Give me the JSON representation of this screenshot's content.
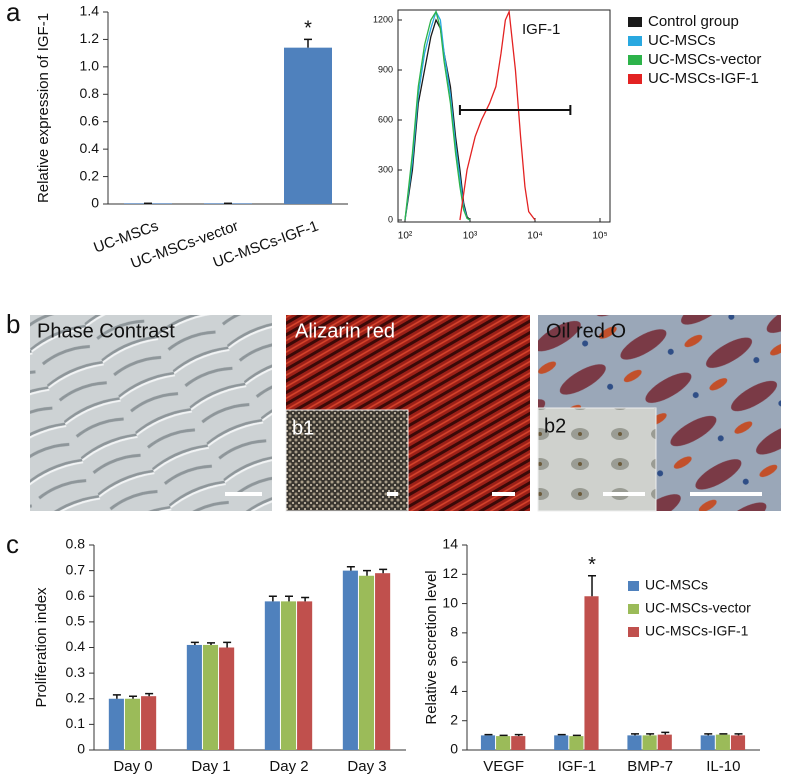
{
  "panel_labels": [
    "a",
    "b",
    "c"
  ],
  "images": [
    {
      "title": "Phase Contrast"
    },
    {
      "title": "Alizarin red",
      "inset": "b1"
    },
    {
      "title": "Oil red O",
      "inset": "b2"
    }
  ],
  "chart_data": [
    {
      "type": "bar",
      "ylabel": "Relative expression of IGF-1",
      "categories": [
        "UC-MSCs",
        "UC-MSCs-vector",
        "UC-MSCs-IGF-1"
      ],
      "values": [
        0.005,
        0.005,
        1.14
      ],
      "errors": [
        0,
        0,
        0.06
      ],
      "color": "#4f81bd",
      "annotation": "*",
      "xtick_rotation": -20,
      "ylim": [
        0,
        1.4
      ],
      "yticks": [
        0,
        0.2,
        0.4,
        0.6,
        0.8,
        {
          "value": 1,
          "label": "1.0"
        },
        1.2,
        1.4
      ]
    },
    {
      "type": "line",
      "annotation": "IGF-1",
      "xscale": "log",
      "legend": "right",
      "xlim": [
        100,
        100000
      ],
      "xticks": [
        {
          "value": 100,
          "label": "10²"
        },
        {
          "value": 1000,
          "label": "10³"
        },
        {
          "value": 10000,
          "label": "10⁴"
        },
        {
          "value": 100000,
          "label": "10⁵"
        }
      ],
      "ylim": [
        0,
        1260
      ],
      "yticks": [
        0,
        300,
        600,
        900,
        1200
      ],
      "gate": {
        "x": [
          700,
          35000
        ],
        "y": 660
      },
      "series": [
        {
          "name": "Control group",
          "color": "#1a1a1a",
          "x": [
            100,
            130,
            160,
            200,
            250,
            300,
            350,
            400,
            500,
            600,
            700,
            800,
            900,
            1000
          ],
          "values": [
            0,
            300,
            700,
            900,
            1100,
            1200,
            1150,
            1000,
            800,
            500,
            300,
            100,
            20,
            0
          ]
        },
        {
          "name": "UC-MSCs",
          "color": "#29a8e0",
          "x": [
            100,
            130,
            160,
            200,
            250,
            300,
            350,
            400,
            500,
            600,
            700,
            800,
            900,
            1000
          ],
          "values": [
            0,
            350,
            750,
            1000,
            1150,
            1250,
            1200,
            1000,
            750,
            450,
            250,
            80,
            10,
            0
          ]
        },
        {
          "name": "UC-MSCs-vector",
          "color": "#2db34a",
          "x": [
            100,
            130,
            160,
            200,
            250,
            300,
            350,
            400,
            500,
            600,
            700,
            800,
            900,
            1000
          ],
          "values": [
            0,
            400,
            800,
            1050,
            1200,
            1250,
            1150,
            950,
            700,
            400,
            200,
            60,
            10,
            0
          ]
        },
        {
          "name": "UC-MSCs-IGF-1",
          "color": "#e32222",
          "x": [
            700,
            900,
            1200,
            1500,
            2000,
            2500,
            3000,
            3500,
            4000,
            5000,
            6000,
            7000,
            8000,
            10000
          ],
          "values": [
            0,
            300,
            500,
            600,
            700,
            800,
            1000,
            1200,
            1250,
            900,
            500,
            200,
            50,
            0
          ]
        }
      ]
    },
    {
      "type": "bar",
      "ylabel": "Proliferation index",
      "categories": [
        "Day 0",
        "Day 1",
        "Day 2",
        "Day 3"
      ],
      "ylim": [
        0,
        0.8
      ],
      "yticks": [
        0,
        0.1,
        0.2,
        0.3,
        0.4,
        0.5,
        0.6,
        0.7,
        0.8
      ],
      "series": [
        {
          "name": "UC-MSCs",
          "color": "#4f81bd",
          "values": [
            0.2,
            0.41,
            0.58,
            0.7
          ],
          "errors": [
            0.015,
            0.01,
            0.02,
            0.015
          ]
        },
        {
          "name": "UC-MSCs-vector",
          "color": "#9bbb59",
          "values": [
            0.2,
            0.41,
            0.58,
            0.68
          ],
          "errors": [
            0.01,
            0.008,
            0.02,
            0.02
          ]
        },
        {
          "name": "UC-MSCs-IGF-1",
          "color": "#c0504d",
          "values": [
            0.21,
            0.4,
            0.58,
            0.69
          ],
          "errors": [
            0.01,
            0.02,
            0.015,
            0.015
          ]
        }
      ]
    },
    {
      "type": "bar",
      "ylabel": "Relative secretion level",
      "categories": [
        "VEGF",
        "IGF-1",
        "BMP-7",
        "IL-10"
      ],
      "legend": "upper right",
      "annotation": "*",
      "ylim": [
        0,
        14
      ],
      "yticks": [
        0,
        2,
        4,
        6,
        8,
        10,
        12,
        14
      ],
      "series": [
        {
          "name": "UC-MSCs",
          "color": "#4f81bd",
          "values": [
            1,
            1,
            1,
            1
          ],
          "errors": [
            0.05,
            0.05,
            0.1,
            0.1
          ]
        },
        {
          "name": "UC-MSCs-vector",
          "color": "#9bbb59",
          "values": [
            0.95,
            0.95,
            1,
            1.05
          ],
          "errors": [
            0.05,
            0.05,
            0.1,
            0.05
          ]
        },
        {
          "name": "UC-MSCs-IGF-1",
          "color": "#c0504d",
          "values": [
            0.95,
            10.5,
            1.05,
            1
          ],
          "errors": [
            0.1,
            1.4,
            0.15,
            0.1
          ]
        }
      ]
    }
  ]
}
